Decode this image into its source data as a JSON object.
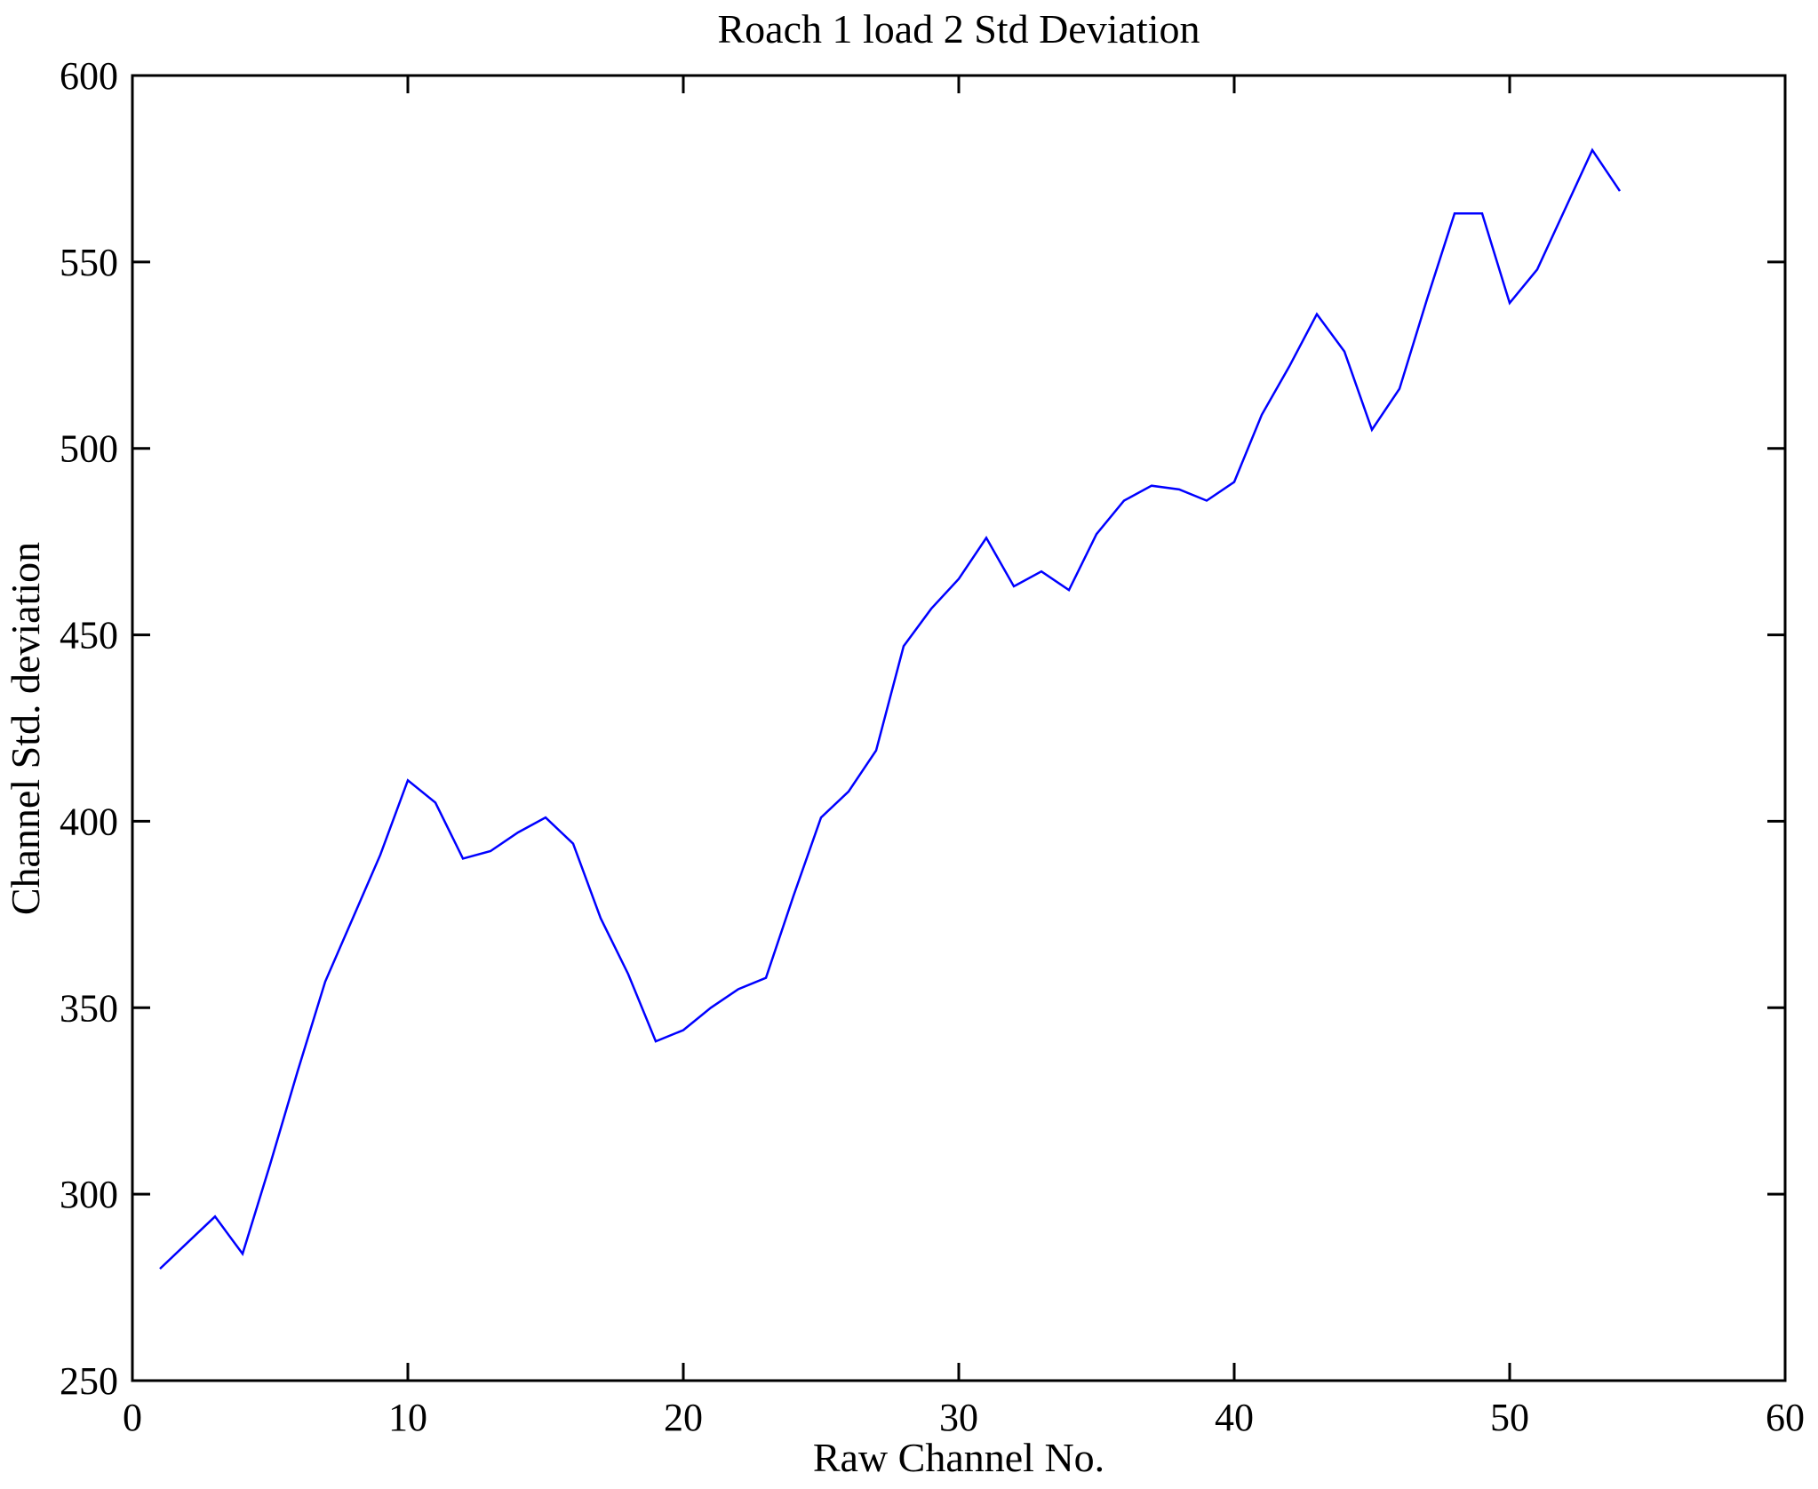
{
  "page": {
    "background_color": "#ffffff",
    "axis_color": "#000000"
  },
  "chart_data": {
    "type": "line",
    "title": "Roach 1 load 2 Std Deviation",
    "xlabel": "Raw Channel No.",
    "ylabel": "Channel Std. deviation",
    "xlim": [
      0,
      60
    ],
    "ylim": [
      250,
      600
    ],
    "xticks": [
      0,
      10,
      20,
      30,
      40,
      50,
      60
    ],
    "yticks": [
      250,
      300,
      350,
      400,
      450,
      500,
      550,
      600
    ],
    "grid": false,
    "legend_position": "none",
    "series": [
      {
        "name": "Channel Std. deviation",
        "color": "#0000ff",
        "x": [
          1,
          2,
          3,
          4,
          5,
          6,
          7,
          8,
          9,
          10,
          11,
          12,
          13,
          14,
          15,
          16,
          17,
          18,
          19,
          20,
          21,
          22,
          23,
          24,
          25,
          26,
          27,
          28,
          29,
          30,
          31,
          32,
          33,
          34,
          35,
          36,
          37,
          38,
          39,
          40,
          41,
          42,
          43,
          44,
          45,
          46,
          47,
          48,
          49,
          50,
          51,
          52,
          53,
          54
        ],
        "y": [
          280,
          287,
          294,
          284,
          308,
          333,
          357,
          374,
          391,
          411,
          405,
          390,
          392,
          397,
          401,
          394,
          374,
          359,
          341,
          344,
          350,
          355,
          358,
          380,
          401,
          408,
          419,
          447,
          457,
          465,
          476,
          463,
          467,
          462,
          477,
          486,
          490,
          489,
          486,
          491,
          509,
          522,
          536,
          526,
          505,
          516,
          540,
          563,
          563,
          539,
          548,
          564,
          580,
          569
        ]
      }
    ]
  }
}
